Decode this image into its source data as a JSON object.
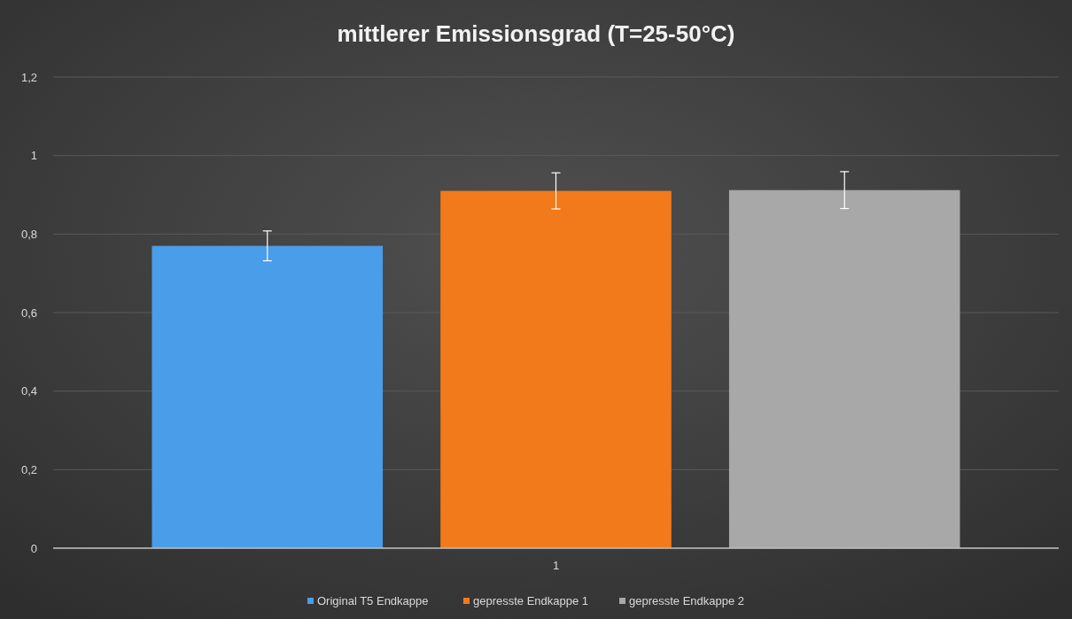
{
  "chart_data": {
    "type": "bar",
    "title": "mittlerer Emissionsgrad (T=25-50°C)",
    "categories": [
      "1"
    ],
    "series": [
      {
        "name": "Original T5 Endkappe",
        "color": "#4a9de8",
        "values": [
          0.77
        ],
        "errors": [
          0.038
        ]
      },
      {
        "name": "gepresste Endkappe 1",
        "color": "#f27a1a",
        "values": [
          0.91
        ],
        "errors": [
          0.046
        ]
      },
      {
        "name": "gepresste Endkappe 2",
        "color": "#a8a8a8",
        "values": [
          0.912
        ],
        "errors": [
          0.047
        ]
      }
    ],
    "ylim": [
      0,
      1.2
    ],
    "yticks": [
      {
        "value": 0,
        "label": "0"
      },
      {
        "value": 0.2,
        "label": "0,2"
      },
      {
        "value": 0.4,
        "label": "0,4"
      },
      {
        "value": 0.6,
        "label": "0,6"
      },
      {
        "value": 0.8,
        "label": "0,8"
      },
      {
        "value": 1,
        "label": "1"
      },
      {
        "value": 1.2,
        "label": "1,2"
      }
    ],
    "grid": "y",
    "legend": "bottom"
  }
}
